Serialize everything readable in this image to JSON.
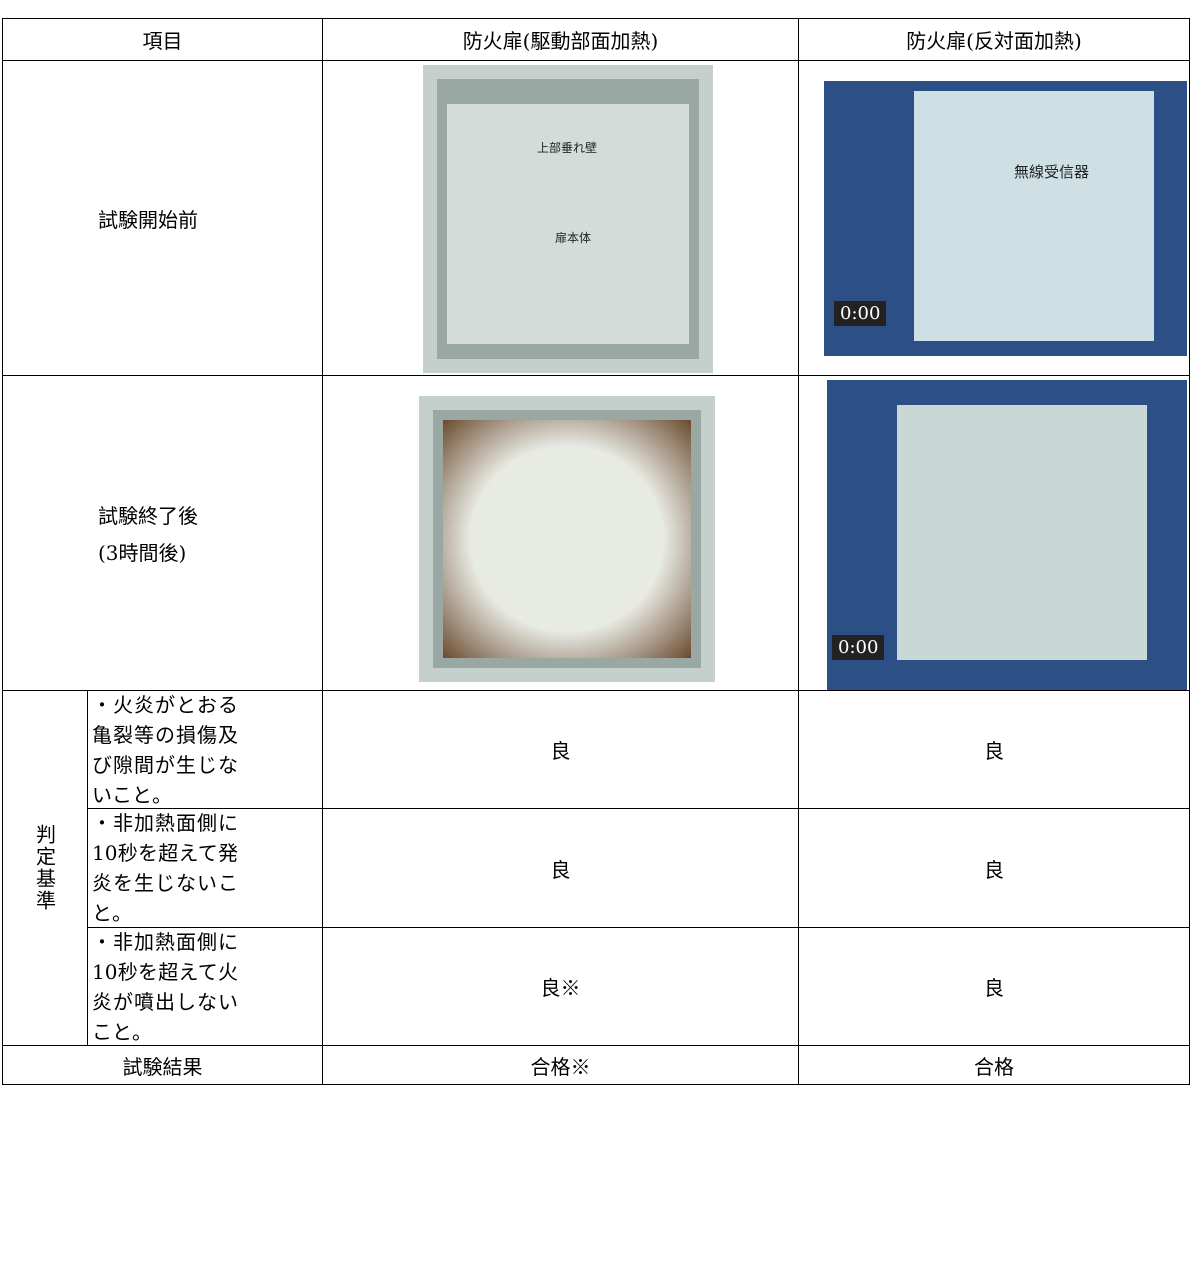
{
  "table": {
    "header": [
      "項目",
      "防火扉(駆動部面加熱)",
      "防火扉(反対面加熱)"
    ],
    "before": {
      "label": "試験開始前",
      "photo1_labels": [
        "上部垂れ壁",
        "扉本体"
      ],
      "photo2_labels": [
        "無線受信器",
        "0:00"
      ]
    },
    "after": {
      "label": "試験終了後",
      "sublabel": "(3時間後)",
      "photo2_labels": [
        "0:00"
      ]
    },
    "criteria": {
      "label": "判定基準",
      "items": [
        {
          "text": "・火炎がとおる亀裂等の損傷及び隙間が生じないこと。",
          "results": [
            "良",
            "良"
          ]
        },
        {
          "text": "・非加熱面側に10秒を超えて発炎を生じないこと。",
          "results": [
            "良",
            "良"
          ]
        },
        {
          "text": "・非加熱面側に10秒を超えて火炎が噴出しないこと。",
          "results": [
            "良※",
            "良"
          ]
        }
      ]
    },
    "result": {
      "label": "試験結果",
      "results": [
        "合格※",
        "合格"
      ]
    }
  }
}
